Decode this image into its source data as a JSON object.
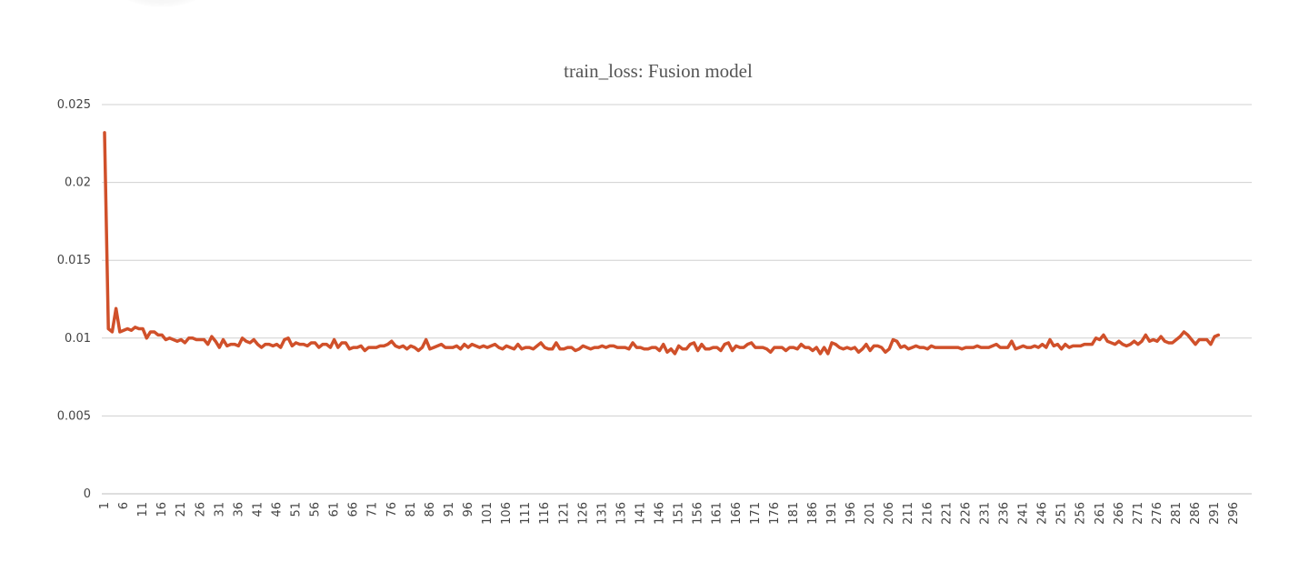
{
  "chart_data": {
    "type": "line",
    "title": "train_loss: Fusion model",
    "xlabel": "",
    "ylabel": "",
    "ylim": [
      0,
      0.025
    ],
    "y_ticks": [
      "0",
      "0.005",
      "0.01",
      "0.015",
      "0.02",
      "0.025"
    ],
    "x_range": [
      1,
      300
    ],
    "x_tick_labels": [
      "1",
      "6",
      "11",
      "16",
      "21",
      "26",
      "31",
      "36",
      "41",
      "46",
      "51",
      "56",
      "61",
      "66",
      "71",
      "76",
      "81",
      "86",
      "91",
      "96",
      "101",
      "106",
      "111",
      "116",
      "121",
      "126",
      "131",
      "136",
      "141",
      "146",
      "151",
      "156",
      "161",
      "166",
      "171",
      "176",
      "181",
      "186",
      "191",
      "196",
      "201",
      "206",
      "211",
      "216",
      "221",
      "226",
      "231",
      "236",
      "241",
      "246",
      "251",
      "256",
      "261",
      "266",
      "271",
      "276",
      "281",
      "286",
      "291",
      "296"
    ],
    "grid": true,
    "legend": "none",
    "colors": {
      "series": "#d0502a"
    },
    "series": [
      {
        "x_start": 1,
        "values": [
          0.0232,
          0.0106,
          0.0104,
          0.0119,
          0.0104,
          0.0105,
          0.0106,
          0.0105,
          0.0107,
          0.0106,
          0.0106,
          0.01,
          0.0104,
          0.0104,
          0.0102,
          0.0102,
          0.0099,
          0.01,
          0.0099,
          0.0098,
          0.0099,
          0.0097,
          0.01,
          0.01,
          0.0099,
          0.0099,
          0.0099,
          0.0096,
          0.0101,
          0.0098,
          0.0094,
          0.0099,
          0.0095,
          0.0096,
          0.0096,
          0.0095,
          0.01,
          0.0098,
          0.0097,
          0.0099,
          0.0096,
          0.0094,
          0.0096,
          0.0096,
          0.0095,
          0.0096,
          0.0094,
          0.0099,
          0.01,
          0.0095,
          0.0097,
          0.0096,
          0.0096,
          0.0095,
          0.0097,
          0.0097,
          0.0094,
          0.0096,
          0.0096,
          0.0094,
          0.0099,
          0.0094,
          0.0097,
          0.0097,
          0.0093,
          0.0094,
          0.0094,
          0.0095,
          0.0092,
          0.0094,
          0.0094,
          0.0094,
          0.0095,
          0.0095,
          0.0096,
          0.0098,
          0.0095,
          0.0094,
          0.0095,
          0.0093,
          0.0095,
          0.0094,
          0.0092,
          0.0094,
          0.0099,
          0.0093,
          0.0094,
          0.0095,
          0.0096,
          0.0094,
          0.0094,
          0.0094,
          0.0095,
          0.0093,
          0.0096,
          0.0094,
          0.0096,
          0.0095,
          0.0094,
          0.0095,
          0.0094,
          0.0095,
          0.0096,
          0.0094,
          0.0093,
          0.0095,
          0.0094,
          0.0093,
          0.0096,
          0.0093,
          0.0094,
          0.0094,
          0.0093,
          0.0095,
          0.0097,
          0.0094,
          0.0093,
          0.0093,
          0.0097,
          0.0093,
          0.0093,
          0.0094,
          0.0094,
          0.0092,
          0.0093,
          0.0095,
          0.0094,
          0.0093,
          0.0094,
          0.0094,
          0.0095,
          0.0094,
          0.0095,
          0.0095,
          0.0094,
          0.0094,
          0.0094,
          0.0093,
          0.0097,
          0.0094,
          0.0094,
          0.0093,
          0.0093,
          0.0094,
          0.0094,
          0.0092,
          0.0096,
          0.0091,
          0.0093,
          0.009,
          0.0095,
          0.0093,
          0.0093,
          0.0096,
          0.0097,
          0.0092,
          0.0096,
          0.0093,
          0.0093,
          0.0094,
          0.0094,
          0.0092,
          0.0096,
          0.0097,
          0.0092,
          0.0095,
          0.0094,
          0.0094,
          0.0096,
          0.0097,
          0.0094,
          0.0094,
          0.0094,
          0.0093,
          0.0091,
          0.0094,
          0.0094,
          0.0094,
          0.0092,
          0.0094,
          0.0094,
          0.0093,
          0.0096,
          0.0094,
          0.0094,
          0.0092,
          0.0094,
          0.009,
          0.0094,
          0.009,
          0.0097,
          0.0096,
          0.0094,
          0.0093,
          0.0094,
          0.0093,
          0.0094,
          0.0091,
          0.0093,
          0.0096,
          0.0092,
          0.0095,
          0.0095,
          0.0094,
          0.0091,
          0.0093,
          0.0099,
          0.0098,
          0.0094,
          0.0095,
          0.0093,
          0.0094,
          0.0095,
          0.0094,
          0.0094,
          0.0093,
          0.0095,
          0.0094,
          0.0094,
          0.0094,
          0.0094,
          0.0094,
          0.0094,
          0.0094,
          0.0093,
          0.0094,
          0.0094,
          0.0094,
          0.0095,
          0.0094,
          0.0094,
          0.0094,
          0.0095,
          0.0096,
          0.0094,
          0.0094,
          0.0094,
          0.0098,
          0.0093,
          0.0094,
          0.0095,
          0.0094,
          0.0094,
          0.0095,
          0.0094,
          0.0096,
          0.0094,
          0.0099,
          0.0095,
          0.0096,
          0.0093,
          0.0096,
          0.0094,
          0.0095,
          0.0095,
          0.0095,
          0.0096,
          0.0096,
          0.0096,
          0.01,
          0.0099,
          0.0102,
          0.0098,
          0.0097,
          0.0096,
          0.0098,
          0.0096,
          0.0095,
          0.0096,
          0.0098,
          0.0096,
          0.0098,
          0.0102,
          0.0098,
          0.0099,
          0.0098,
          0.0101,
          0.0098,
          0.0097,
          0.0097,
          0.0099,
          0.0101,
          0.0104,
          0.0102,
          0.0099,
          0.0096,
          0.0099,
          0.0099,
          0.0099,
          0.0096,
          0.0101,
          0.0102
        ]
      }
    ]
  }
}
